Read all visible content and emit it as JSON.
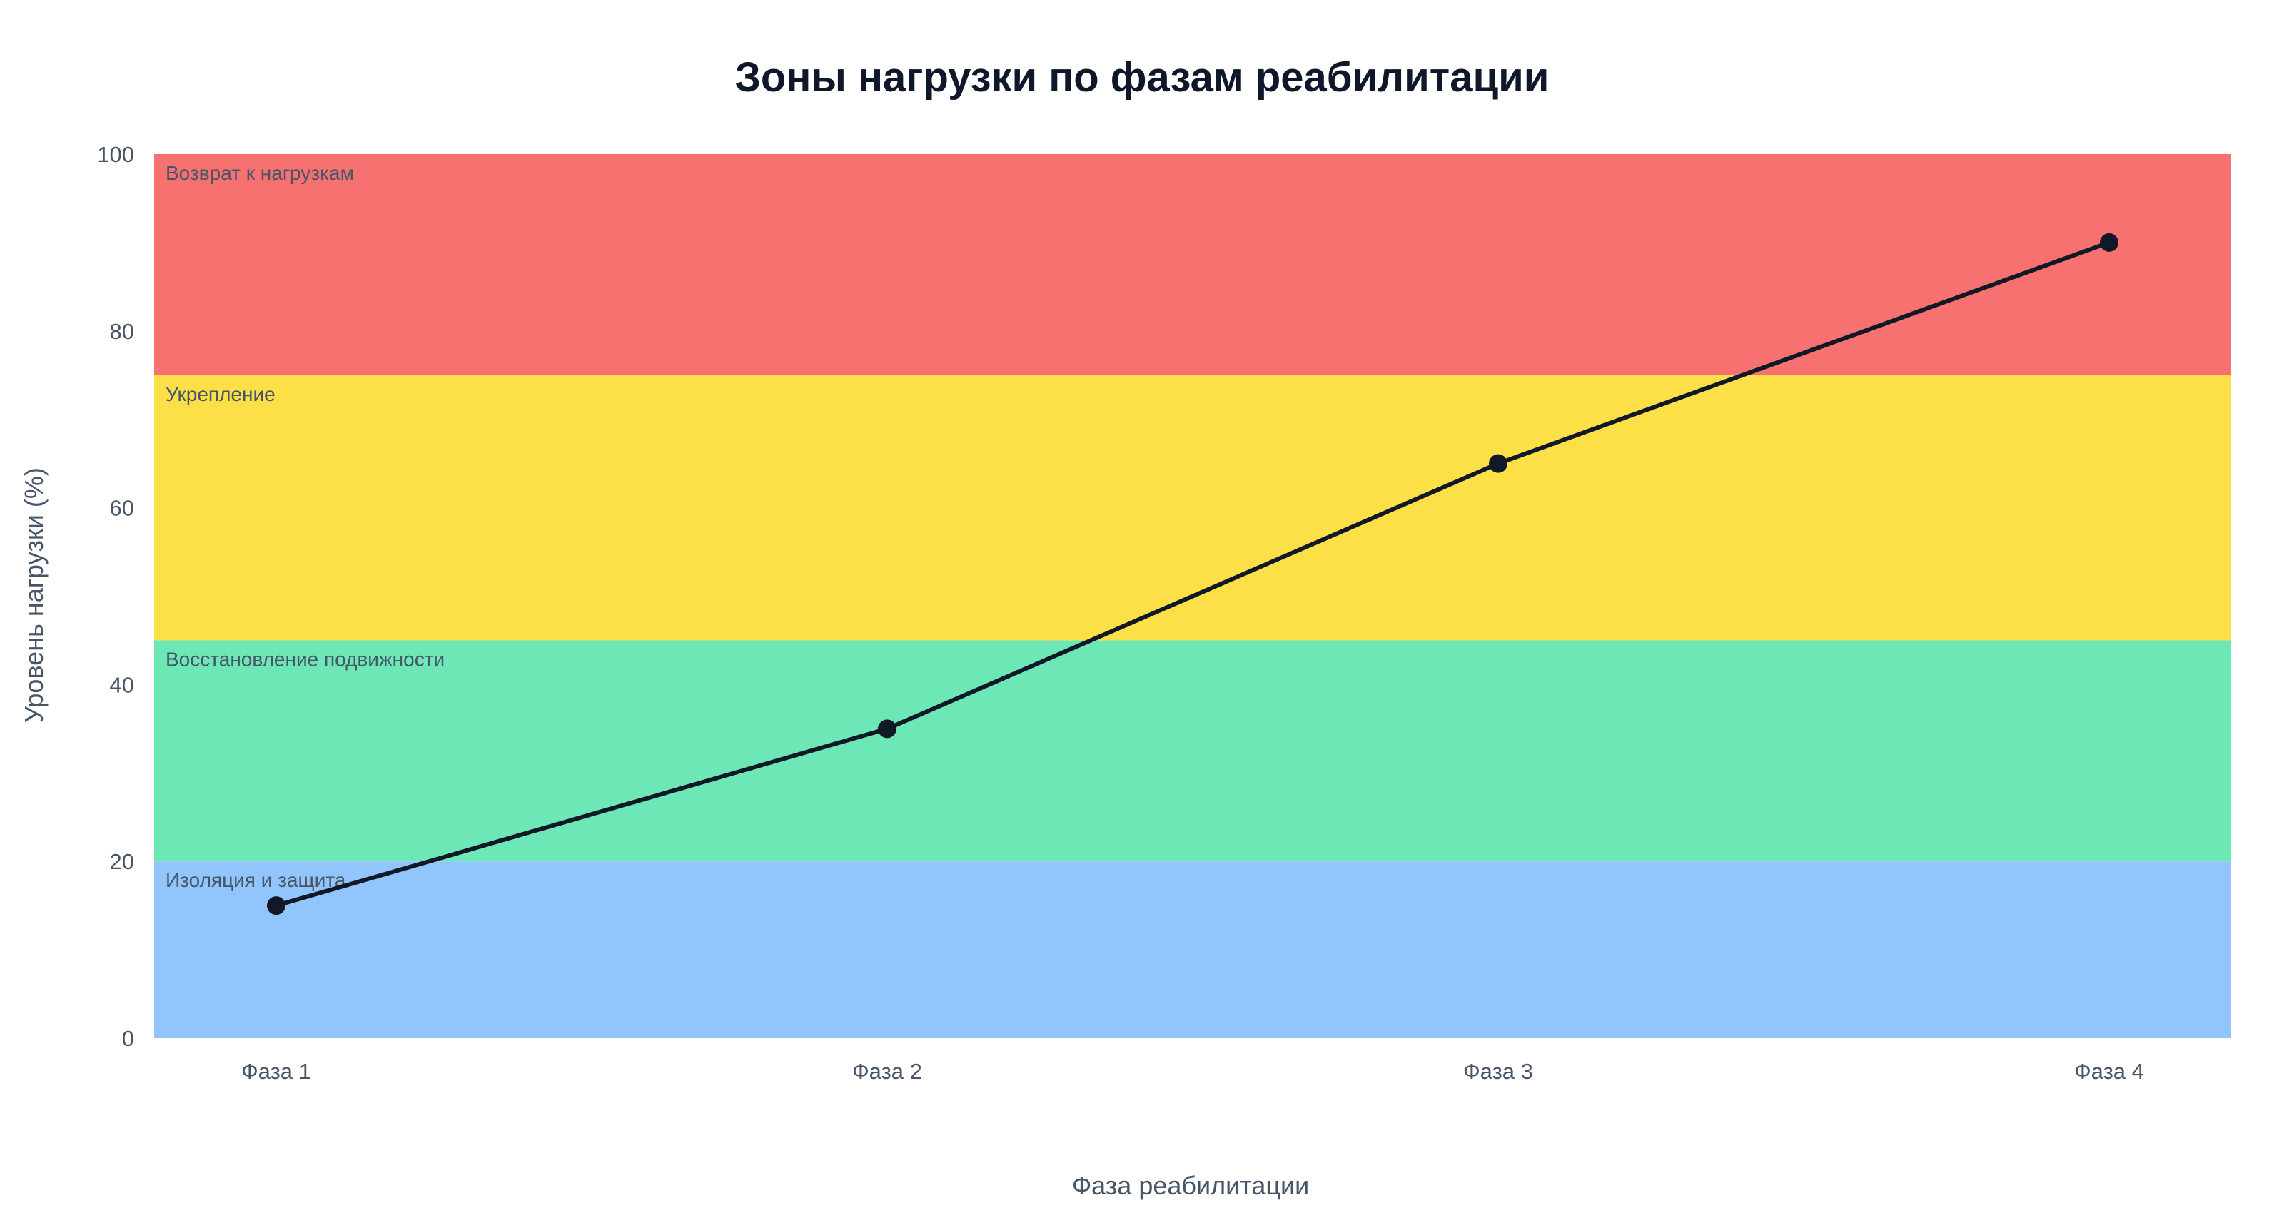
{
  "chart_data": {
    "type": "line",
    "title": "Зоны нагрузки по фазам реабилитации",
    "xlabel": "Фаза реабилитации",
    "ylabel": "Уровень нагрузки (%)",
    "categories": [
      "Фаза 1",
      "Фаза 2",
      "Фаза 3",
      "Фаза 4"
    ],
    "series": [
      {
        "values": [
          15,
          35,
          65,
          90
        ],
        "color": "#111827"
      }
    ],
    "ylim": [
      0,
      100
    ],
    "yticks": [
      0,
      20,
      40,
      60,
      80,
      100
    ],
    "grid": false,
    "legend": "none",
    "zones": [
      {
        "label": "Изоляция и защита",
        "from": 0,
        "to": 20,
        "color": "#93c5fd"
      },
      {
        "label": "Восстановление подвижности",
        "from": 20,
        "to": 45,
        "color": "#6ee7b7"
      },
      {
        "label": "Укрепление",
        "from": 45,
        "to": 75,
        "color": "#fde047"
      },
      {
        "label": "Возврат к нагрузкам",
        "from": 75,
        "to": 100,
        "color": "#f87171"
      }
    ]
  }
}
